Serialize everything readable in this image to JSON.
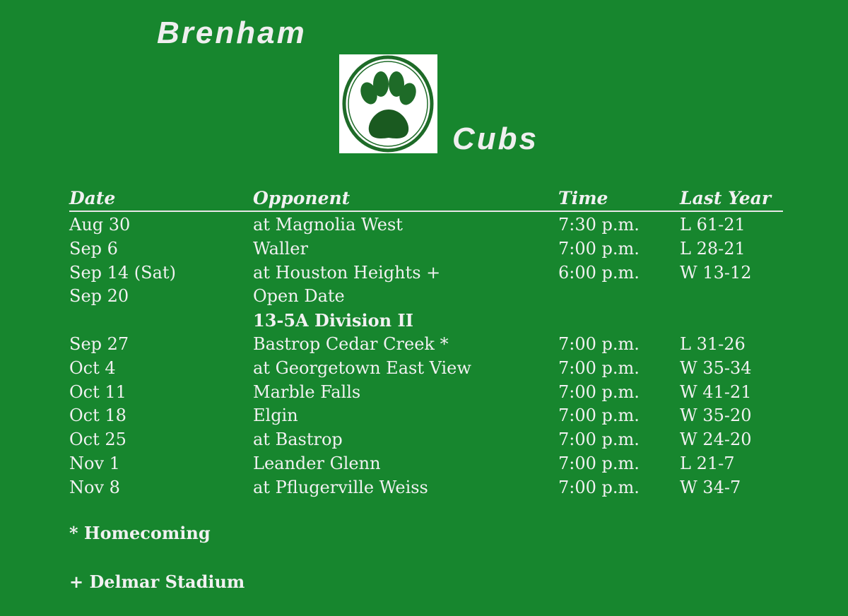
{
  "header": {
    "title_top": "Brenham",
    "title_bottom": "Cubs",
    "logo": "paw-print-logo"
  },
  "columns": [
    "Date",
    "Opponent",
    "Time",
    "Last Year"
  ],
  "rows": [
    {
      "date": "Aug 30",
      "opponent": "at Magnolia West",
      "time": "7:30 p.m.",
      "last": "L  61-21"
    },
    {
      "date": "Sep 6",
      "opponent": "Waller",
      "time": "7:00 p.m.",
      "last": "L  28-21"
    },
    {
      "date": "Sep 14 (Sat)",
      "opponent": "at Houston Heights +",
      "time": "6:00 p.m.",
      "last": "W 13-12"
    },
    {
      "date": "Sep 20",
      "opponent": "Open Date",
      "time": "",
      "last": ""
    },
    {
      "date": "",
      "opponent": "13-5A Division II",
      "time": "",
      "last": "",
      "division": true
    },
    {
      "date": "Sep 27",
      "opponent": "Bastrop Cedar Creek *",
      "time": "7:00 p.m.",
      "last": "L  31-26"
    },
    {
      "date": "Oct 4",
      "opponent": "at Georgetown East View",
      "time": "7:00 p.m.",
      "last": "W 35-34"
    },
    {
      "date": "Oct 11",
      "opponent": "Marble Falls",
      "time": "7:00 p.m.",
      "last": "W 41-21"
    },
    {
      "date": "Oct 18",
      "opponent": "Elgin",
      "time": "7:00 p.m.",
      "last": "W 35-20"
    },
    {
      "date": "Oct 25",
      "opponent": "at Bastrop",
      "time": "7:00 p.m.",
      "last": "W 24-20"
    },
    {
      "date": "Nov 1",
      "opponent": "Leander Glenn",
      "time": "7:00 p.m.",
      "last": "L  21-7"
    },
    {
      "date": "Nov 8",
      "opponent": "at Pflugerville Weiss",
      "time": "7:00 p.m.",
      "last": "W 34-7"
    }
  ],
  "notes": {
    "homecoming": "* Homecoming",
    "stadium": "+ Delmar Stadium"
  },
  "colors": {
    "background": "#17862e",
    "text": "#f1f1f1",
    "logo_green": "#1e6b28"
  }
}
